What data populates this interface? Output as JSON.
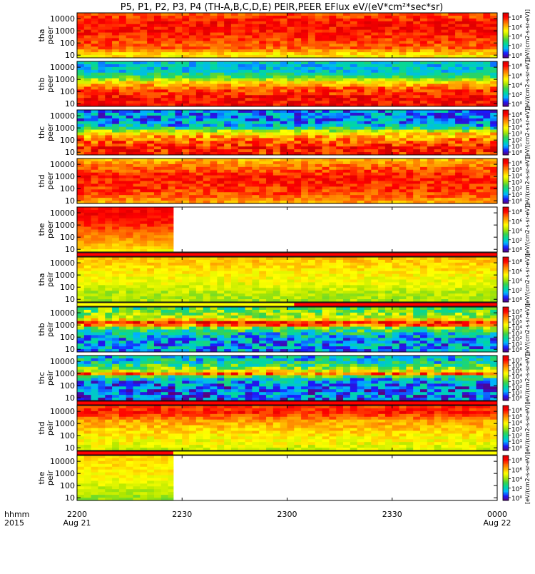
{
  "title": "P5, P1, P2, P3, P4 (TH-A,B,C,D,E) PEIR,PEER EFlux eV/(eV*cm²*sec*sr)",
  "chart_data": {
    "type": "heatmap",
    "title": "P5, P1, P2, P3, P4 (TH-A,B,C,D,E) PEIR,PEER EFlux eV/(eV*cm²*sec*sr)",
    "x_range_minutes": [
      0,
      120
    ],
    "x_ticks": [
      "2200",
      "2230",
      "2300",
      "2330",
      "0000"
    ],
    "x_tick_minutes": [
      0,
      30,
      60,
      90,
      120
    ],
    "x_sublabels": [
      "Aug 21",
      "",
      "",
      "",
      "Aug 22"
    ],
    "x_axis_label": [
      "hhmm",
      "2015"
    ],
    "y_ticks": [
      "10000",
      "1000",
      "100",
      "10"
    ],
    "y_tick_values": [
      10000,
      1000,
      100,
      10
    ],
    "y_range_eV": [
      6,
      30000
    ],
    "y_scale": "log",
    "colorbar_label": "[eV/(cm2-s-sr-eV)]",
    "colorscale": [
      "#5a007a",
      "#1a1aff",
      "#00b4ff",
      "#00d8a0",
      "#3cd24a",
      "#aee600",
      "#ffff00",
      "#ffb400",
      "#ff6400",
      "#ff0000",
      "#d00000"
    ],
    "panels": [
      {
        "name": "tha-peer",
        "label": [
          "tha",
          "peer"
        ],
        "data_end_min": 120,
        "cbar_ticks": [
          "10⁸",
          "10⁶",
          "10⁴",
          "10²",
          "10⁰"
        ],
        "profile": [
          [
            1.0,
            0.62
          ],
          [
            1.6,
            0.8
          ],
          [
            2.3,
            0.85
          ],
          [
            3.0,
            0.9
          ],
          [
            3.8,
            0.9
          ],
          [
            4.3,
            0.82
          ]
        ],
        "noise": 0.08,
        "flag": null
      },
      {
        "name": "thb-peer",
        "label": [
          "thb",
          "peer"
        ],
        "data_end_min": 120,
        "cbar_ticks": [
          "10⁸",
          "10⁶",
          "10⁴",
          "10²",
          "10⁰"
        ],
        "profile": [
          [
            0.9,
            0.92
          ],
          [
            1.6,
            0.9
          ],
          [
            2.2,
            0.82
          ],
          [
            2.7,
            0.66
          ],
          [
            3.2,
            0.4
          ],
          [
            3.7,
            0.25
          ],
          [
            4.4,
            0.25
          ]
        ],
        "noise": 0.1,
        "flag": null
      },
      {
        "name": "thc-peer",
        "label": [
          "thc",
          "peer"
        ],
        "data_end_min": 120,
        "cbar_ticks": [
          "10⁶",
          "10⁵",
          "10⁴",
          "10³",
          "10²",
          "10¹",
          "10⁰"
        ],
        "profile": [
          [
            0.9,
            0.88
          ],
          [
            1.4,
            0.9
          ],
          [
            2.0,
            0.78
          ],
          [
            2.6,
            0.62
          ],
          [
            3.1,
            0.25
          ],
          [
            3.6,
            0.18
          ],
          [
            4.4,
            0.18
          ]
        ],
        "noise": 0.14,
        "flag": null
      },
      {
        "name": "thd-peer",
        "label": [
          "thd",
          "peer"
        ],
        "data_end_min": 120,
        "cbar_ticks": [
          "10⁶",
          "10⁵",
          "10⁴",
          "10³",
          "10²",
          "10¹",
          "10⁰"
        ],
        "profile": [
          [
            0.9,
            0.72
          ],
          [
            1.5,
            0.82
          ],
          [
            2.2,
            0.86
          ],
          [
            3.0,
            0.88
          ],
          [
            3.7,
            0.8
          ],
          [
            4.4,
            0.7
          ]
        ],
        "noise": 0.08,
        "flag": null
      },
      {
        "name": "the-peer",
        "label": [
          "the",
          "peer"
        ],
        "data_end_min": 27.5,
        "cbar_ticks": [
          "10⁸",
          "10⁶",
          "10⁴",
          "10²",
          "10⁰"
        ],
        "profile": [
          [
            0.9,
            0.62
          ],
          [
            1.6,
            0.72
          ],
          [
            2.4,
            0.8
          ],
          [
            3.2,
            0.88
          ],
          [
            3.9,
            0.92
          ],
          [
            4.4,
            0.9
          ]
        ],
        "noise": 0.05,
        "flag": {
          "segments": [
            {
              "from": 0,
              "to": 120,
              "color": "#ff0000"
            }
          ]
        }
      },
      {
        "name": "tha-peir",
        "label": [
          "tha",
          "peir"
        ],
        "data_end_min": 120,
        "cbar_ticks": [
          "10⁸",
          "10⁶",
          "10⁴",
          "10²",
          "10⁰"
        ],
        "profile": [
          [
            0.9,
            0.5
          ],
          [
            1.6,
            0.52
          ],
          [
            2.4,
            0.58
          ],
          [
            3.2,
            0.62
          ],
          [
            3.9,
            0.66
          ],
          [
            4.4,
            0.68
          ]
        ],
        "noise": 0.06,
        "flag": {
          "segments": [
            {
              "from": 0,
              "to": 62,
              "color": "#ffff00"
            },
            {
              "from": 62,
              "to": 120,
              "color": "#ff0000"
            }
          ]
        }
      },
      {
        "name": "thb-peir",
        "label": [
          "thb",
          "peir"
        ],
        "data_end_min": 120,
        "cbar_ticks": [
          "10⁷",
          "10⁶",
          "10⁵",
          "10⁴",
          "10³",
          "10²",
          "10¹",
          "10⁰"
        ],
        "profile": [
          [
            0.9,
            0.2
          ],
          [
            1.8,
            0.2
          ],
          [
            2.4,
            0.3
          ],
          [
            2.8,
            0.45
          ],
          [
            3.0,
            0.82
          ],
          [
            3.2,
            0.9
          ],
          [
            3.5,
            0.55
          ],
          [
            4.4,
            0.4
          ]
        ],
        "noise": 0.16,
        "flag": null
      },
      {
        "name": "thc-peir",
        "label": [
          "thc",
          "peir"
        ],
        "data_end_min": 120,
        "cbar_ticks": [
          "10⁷",
          "10⁶",
          "10⁵",
          "10⁴",
          "10³",
          "10²",
          "10¹",
          "10⁰"
        ],
        "profile": [
          [
            0.9,
            0.15
          ],
          [
            1.8,
            0.15
          ],
          [
            2.4,
            0.2
          ],
          [
            2.8,
            0.4
          ],
          [
            3.0,
            0.85
          ],
          [
            3.2,
            0.6
          ],
          [
            3.8,
            0.3
          ],
          [
            4.4,
            0.25
          ]
        ],
        "noise": 0.16,
        "flag": {
          "segments": [
            {
              "from": 0,
              "to": 120,
              "color": "#ff0000"
            }
          ]
        }
      },
      {
        "name": "thd-peir",
        "label": [
          "thd",
          "peir"
        ],
        "data_end_min": 120,
        "cbar_ticks": [
          "10⁶",
          "10⁵",
          "10⁴",
          "10³",
          "10²",
          "10¹",
          "10⁰"
        ],
        "profile": [
          [
            0.9,
            0.55
          ],
          [
            1.6,
            0.6
          ],
          [
            2.4,
            0.66
          ],
          [
            3.2,
            0.72
          ],
          [
            3.9,
            0.88
          ],
          [
            4.4,
            0.85
          ]
        ],
        "noise": 0.07,
        "flag": {
          "segments": [
            {
              "from": 0,
              "to": 27.5,
              "color": "#ff0000"
            },
            {
              "from": 27.5,
              "to": 120,
              "color": "#ffff00"
            }
          ]
        }
      },
      {
        "name": "the-peir",
        "label": [
          "the",
          "peir"
        ],
        "data_end_min": 27.5,
        "cbar_ticks": [
          "10⁸",
          "10⁶",
          "10⁴",
          "10²",
          "10⁰"
        ],
        "profile": [
          [
            0.9,
            0.48
          ],
          [
            1.6,
            0.52
          ],
          [
            2.4,
            0.58
          ],
          [
            3.2,
            0.62
          ],
          [
            3.9,
            0.64
          ],
          [
            4.4,
            0.64
          ]
        ],
        "noise": 0.05,
        "flag": null
      }
    ]
  }
}
